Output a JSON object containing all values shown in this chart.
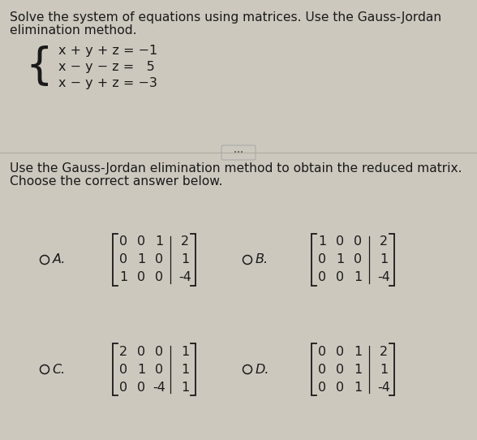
{
  "bg_color": "#cdc8be",
  "text_color": "#1a1a1a",
  "title_line1": "Solve the system of equations using matrices. Use the Gauss-Jordan",
  "title_line2": "elimination method.",
  "system_equations": [
    "x + y + z = −1",
    "x − y − z =   5",
    "x − y + z = −3"
  ],
  "subtitle_line1": "Use the Gauss-Jordan elimination method to obtain the reduced matrix.",
  "subtitle_line2": "Choose the correct answer below.",
  "divider_color": "#b0aba0",
  "matrices": {
    "A": {
      "label": "A.",
      "rows": [
        [
          0,
          0,
          1,
          2
        ],
        [
          0,
          1,
          0,
          1
        ],
        [
          1,
          0,
          0,
          -4
        ]
      ]
    },
    "B": {
      "label": "B.",
      "rows": [
        [
          1,
          0,
          0,
          2
        ],
        [
          0,
          1,
          0,
          1
        ],
        [
          0,
          0,
          1,
          -4
        ]
      ]
    },
    "C": {
      "label": "C.",
      "rows": [
        [
          2,
          0,
          0,
          1
        ],
        [
          0,
          1,
          0,
          1
        ],
        [
          0,
          0,
          -4,
          1
        ]
      ]
    },
    "D": {
      "label": "D.",
      "rows": [
        [
          0,
          0,
          1,
          2
        ],
        [
          0,
          0,
          1,
          1
        ],
        [
          0,
          0,
          1,
          -4
        ]
      ]
    }
  }
}
